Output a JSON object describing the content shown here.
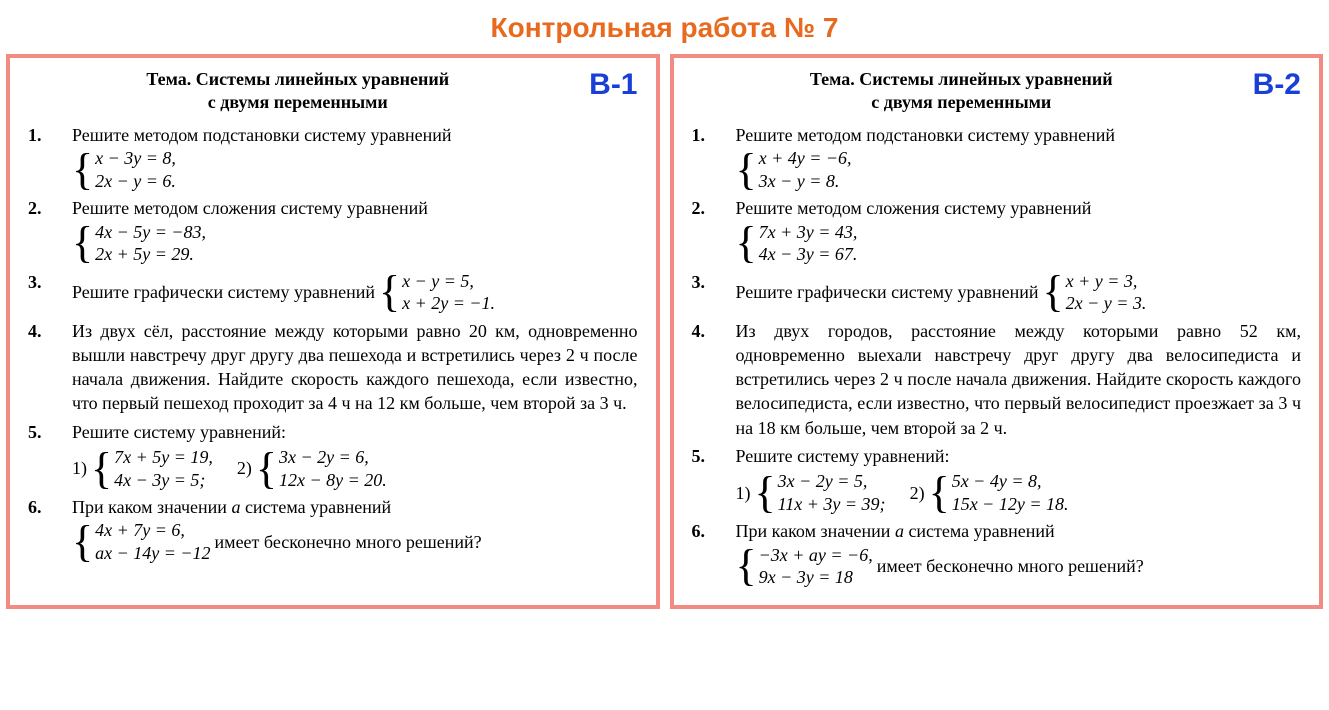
{
  "colors": {
    "title": "#e86a1f",
    "card_border": "#f28b82",
    "badge": "#1a3fd6",
    "text": "#000000",
    "background": "#ffffff"
  },
  "header": {
    "title": "Контрольная работа № 7"
  },
  "topic": {
    "label": "Тема.",
    "text_line1": "Системы линейных уравнений",
    "text_line2": "с двумя переменными"
  },
  "variants": [
    {
      "badge": "В-1",
      "problems": [
        {
          "num": "1.",
          "text": "Решите методом подстановки систему уравнений",
          "system": [
            "x − 3y = 8,",
            "2x − y = 6."
          ]
        },
        {
          "num": "2.",
          "text": "Решите методом сложения систему уравнений",
          "system": [
            "4x − 5y = −83,",
            "2x + 5y = 29."
          ]
        },
        {
          "num": "3.",
          "text": "Решите графически систему уравнений",
          "inline_system": [
            "x − y = 5,",
            "x + 2y = −1."
          ]
        },
        {
          "num": "4.",
          "paragraph": "Из двух сёл, расстояние между которыми равно 20 км, одновременно вышли навстречу друг другу два пешехода и встретились через 2 ч после начала движения. Найдите скорость каждого пешехода, если известно, что первый пешеход проходит за 4 ч на 12 км больше, чем второй за 3 ч."
        },
        {
          "num": "5.",
          "text": "Решите систему уравнений:",
          "subs": [
            {
              "label": "1)",
              "system": [
                "7x + 5y = 19,",
                "4x − 3y = 5;"
              ]
            },
            {
              "label": "2)",
              "system": [
                "3x − 2y = 6,",
                "12x − 8y = 20."
              ]
            }
          ]
        },
        {
          "num": "6.",
          "lead": "При каком значении ",
          "var": "a",
          "tail": " система уравнений",
          "system": [
            "4x + 7y = 6,",
            "ax − 14y = −12"
          ],
          "after": " имеет бесконечно много решений?"
        }
      ]
    },
    {
      "badge": "В-2",
      "problems": [
        {
          "num": "1.",
          "text": "Решите методом подстановки систему уравнений",
          "system": [
            "x + 4y = −6,",
            "3x − y = 8."
          ]
        },
        {
          "num": "2.",
          "text": "Решите методом сложения систему уравнений",
          "system": [
            "7x + 3y = 43,",
            "4x − 3y = 67."
          ]
        },
        {
          "num": "3.",
          "text": "Решите графически систему уравнений",
          "inline_system": [
            "x + y = 3,",
            "2x − y = 3."
          ]
        },
        {
          "num": "4.",
          "paragraph": "Из двух городов, расстояние между которыми равно 52 км, одновременно выехали навстречу друг другу два велосипедиста и встретились через 2 ч после начала движения. Найдите скорость каждого велосипедиста, если известно, что первый велосипедист проезжает за 3 ч на 18 км больше, чем второй за 2 ч."
        },
        {
          "num": "5.",
          "text": "Решите систему уравнений:",
          "subs": [
            {
              "label": "1)",
              "system": [
                "3x − 2y = 5,",
                "11x + 3y = 39;"
              ]
            },
            {
              "label": "2)",
              "system": [
                "5x − 4y = 8,",
                "15x − 12y = 18."
              ]
            }
          ]
        },
        {
          "num": "6.",
          "lead": "При каком значении ",
          "var": "a",
          "tail": " система уравнений",
          "system": [
            "−3x + ay = −6,",
            "9x − 3y = 18"
          ],
          "after": " имеет бесконечно много решений?"
        }
      ]
    }
  ]
}
